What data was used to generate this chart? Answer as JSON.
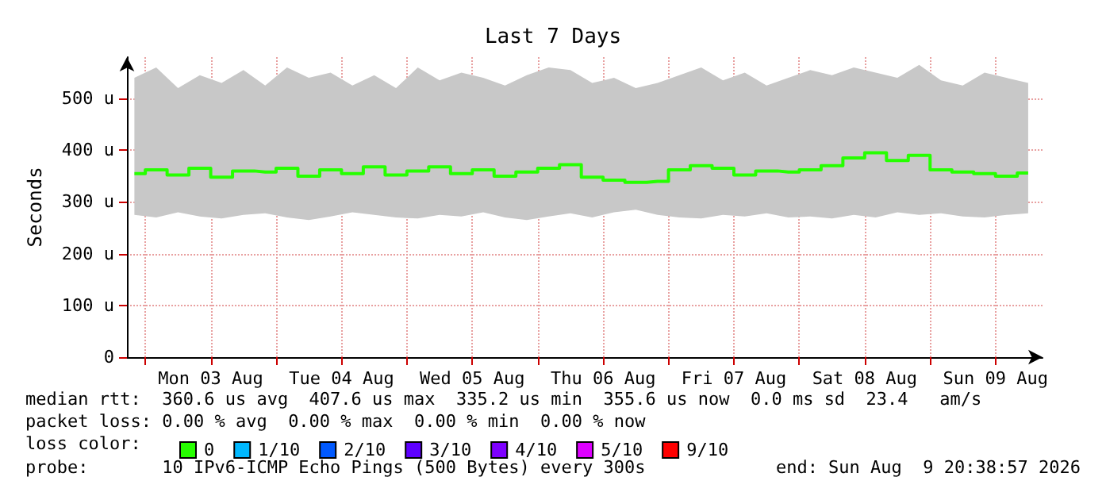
{
  "chart_data": {
    "type": "step",
    "title": "Last 7 Days",
    "ylabel": "Seconds",
    "legend_title": "loss color:",
    "legend": "bottom",
    "grid": true,
    "marker": "none",
    "x": [
      "2026-08-02T22:00",
      "2026-08-03T02:00",
      "2026-08-03T06:00",
      "2026-08-03T10:00",
      "2026-08-03T14:00",
      "2026-08-03T18:00",
      "2026-08-03T22:00",
      "2026-08-04T02:00",
      "2026-08-04T06:00",
      "2026-08-04T10:00",
      "2026-08-04T14:00",
      "2026-08-04T18:00",
      "2026-08-04T22:00",
      "2026-08-05T02:00",
      "2026-08-05T06:00",
      "2026-08-05T10:00",
      "2026-08-05T14:00",
      "2026-08-05T18:00",
      "2026-08-05T22:00",
      "2026-08-06T02:00",
      "2026-08-06T06:00",
      "2026-08-06T10:00",
      "2026-08-06T14:00",
      "2026-08-06T18:00",
      "2026-08-06T22:00",
      "2026-08-07T02:00",
      "2026-08-07T06:00",
      "2026-08-07T10:00",
      "2026-08-07T14:00",
      "2026-08-07T18:00",
      "2026-08-07T22:00",
      "2026-08-08T02:00",
      "2026-08-08T06:00",
      "2026-08-08T10:00",
      "2026-08-08T14:00",
      "2026-08-08T18:00",
      "2026-08-08T22:00",
      "2026-08-09T02:00",
      "2026-08-09T06:00",
      "2026-08-09T10:00",
      "2026-08-09T14:00",
      "2026-08-09T18:00"
    ],
    "xlim": [
      "2026-08-02T20:38",
      "2026-08-09T20:38"
    ],
    "xticks": [
      {
        "value": "2026-08-03T00:00",
        "label": null
      },
      {
        "value": "2026-08-03T12:00",
        "label": "Mon 03 Aug"
      },
      {
        "value": "2026-08-04T00:00",
        "label": null
      },
      {
        "value": "2026-08-04T12:00",
        "label": "Tue 04 Aug"
      },
      {
        "value": "2026-08-05T00:00",
        "label": null
      },
      {
        "value": "2026-08-05T12:00",
        "label": "Wed 05 Aug"
      },
      {
        "value": "2026-08-06T00:00",
        "label": null
      },
      {
        "value": "2026-08-06T12:00",
        "label": "Thu 06 Aug"
      },
      {
        "value": "2026-08-07T00:00",
        "label": null
      },
      {
        "value": "2026-08-07T12:00",
        "label": "Fri 07 Aug"
      },
      {
        "value": "2026-08-08T00:00",
        "label": null
      },
      {
        "value": "2026-08-08T12:00",
        "label": "Sat 08 Aug"
      },
      {
        "value": "2026-08-09T00:00",
        "label": null
      },
      {
        "value": "2026-08-09T12:00",
        "label": "Sun 09 Aug"
      }
    ],
    "ylim": [
      0,
      580
    ],
    "yticks": [
      0,
      {
        "value": 100,
        "label": "100 u"
      },
      {
        "value": 200,
        "label": "200 u"
      },
      {
        "value": 300,
        "label": "300 u"
      },
      {
        "value": 400,
        "label": "400 u"
      },
      {
        "value": 500,
        "label": "500 u"
      }
    ],
    "series": [
      {
        "name": "0",
        "color": "#26ff00",
        "values": [
          355,
          362,
          352,
          365,
          348,
          360,
          358,
          365,
          350,
          362,
          355,
          368,
          352,
          360,
          368,
          355,
          362,
          350,
          358,
          365,
          372,
          348,
          342,
          338,
          340,
          362,
          370,
          365,
          352,
          360,
          358,
          362,
          370,
          385,
          395,
          380,
          390,
          362,
          358,
          355,
          350,
          356
        ],
        "lower": [
          275,
          270,
          280,
          272,
          268,
          275,
          278,
          270,
          265,
          272,
          280,
          275,
          270,
          268,
          275,
          272,
          280,
          270,
          265,
          272,
          278,
          270,
          280,
          285,
          275,
          270,
          268,
          275,
          272,
          278,
          270,
          272,
          268,
          275,
          270,
          280,
          275,
          278,
          272,
          270,
          275,
          278
        ],
        "upper": [
          540,
          560,
          520,
          545,
          530,
          555,
          525,
          560,
          540,
          550,
          525,
          545,
          520,
          560,
          535,
          550,
          540,
          525,
          545,
          560,
          555,
          530,
          540,
          520,
          530,
          545,
          560,
          535,
          550,
          525,
          540,
          555,
          545,
          560,
          550,
          540,
          565,
          535,
          525,
          550,
          540,
          530
        ]
      },
      {
        "name": "1/10",
        "color": "#00b8ff",
        "values": [
          null,
          null,
          null,
          null,
          null,
          null,
          null,
          null,
          null,
          null,
          null,
          null,
          null,
          null,
          null,
          null,
          null,
          null,
          null,
          null,
          null,
          null,
          null,
          null,
          null,
          null,
          null,
          null,
          null,
          null,
          null,
          null,
          null,
          null,
          null,
          null,
          null,
          null,
          null,
          null,
          null,
          null
        ]
      },
      {
        "name": "2/10",
        "color": "#0059ff",
        "values": [
          null,
          null,
          null,
          null,
          null,
          null,
          null,
          null,
          null,
          null,
          null,
          null,
          null,
          null,
          null,
          null,
          null,
          null,
          null,
          null,
          null,
          null,
          null,
          null,
          null,
          null,
          null,
          null,
          null,
          null,
          null,
          null,
          null,
          null,
          null,
          null,
          null,
          null,
          null,
          null,
          null,
          null
        ]
      },
      {
        "name": "3/10",
        "color": "#5e00ff",
        "values": [
          null,
          null,
          null,
          null,
          null,
          null,
          null,
          null,
          null,
          null,
          null,
          null,
          null,
          null,
          null,
          null,
          null,
          null,
          null,
          null,
          null,
          null,
          null,
          null,
          null,
          null,
          null,
          null,
          null,
          null,
          null,
          null,
          null,
          null,
          null,
          null,
          null,
          null,
          null,
          null,
          null,
          null
        ]
      },
      {
        "name": "4/10",
        "color": "#7e00ff",
        "values": [
          null,
          null,
          null,
          null,
          null,
          null,
          null,
          null,
          null,
          null,
          null,
          null,
          null,
          null,
          null,
          null,
          null,
          null,
          null,
          null,
          null,
          null,
          null,
          null,
          null,
          null,
          null,
          null,
          null,
          null,
          null,
          null,
          null,
          null,
          null,
          null,
          null,
          null,
          null,
          null,
          null,
          null
        ]
      },
      {
        "name": "5/10",
        "color": "#dd00ff",
        "values": [
          null,
          null,
          null,
          null,
          null,
          null,
          null,
          null,
          null,
          null,
          null,
          null,
          null,
          null,
          null,
          null,
          null,
          null,
          null,
          null,
          null,
          null,
          null,
          null,
          null,
          null,
          null,
          null,
          null,
          null,
          null,
          null,
          null,
          null,
          null,
          null,
          null,
          null,
          null,
          null,
          null,
          null
        ]
      },
      {
        "name": "9/10",
        "color": "#ff0000",
        "values": [
          null,
          null,
          null,
          null,
          null,
          null,
          null,
          null,
          null,
          null,
          null,
          null,
          null,
          null,
          null,
          null,
          null,
          null,
          null,
          null,
          null,
          null,
          null,
          null,
          null,
          null,
          null,
          null,
          null,
          null,
          null,
          null,
          null,
          null,
          null,
          null,
          null,
          null,
          null,
          null,
          null,
          null
        ]
      }
    ],
    "annotations": [
      "median rtt:  360.6 us avg  407.6 us max  335.2 us min  355.6 us now  0.0 ms sd  23.4   am/s",
      "packet loss: 0.00 % avg  0.00 % max  0.00 % min  0.00 % now",
      "probe:       10 IPv6-ICMP Echo Pings (500 Bytes) every 300s",
      "end: Sun Aug  9 20:38:57 2026"
    ]
  }
}
